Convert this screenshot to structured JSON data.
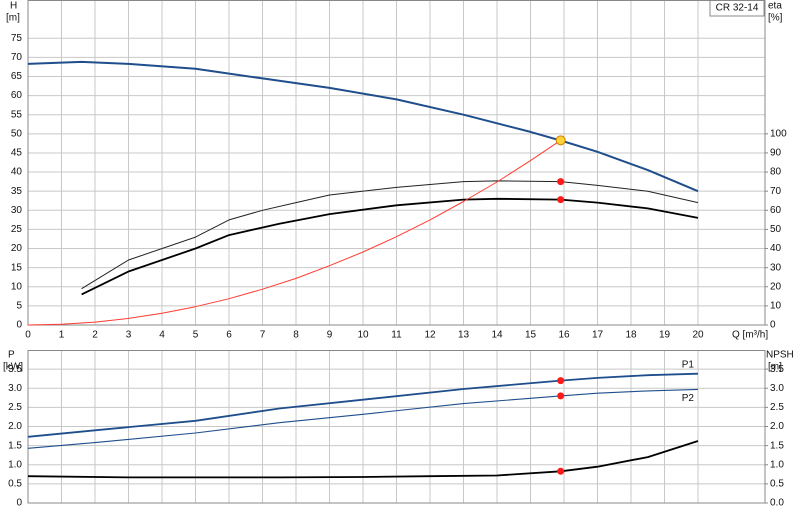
{
  "chart_data": [
    {
      "type": "line",
      "model": "CR 32-14",
      "y_label": "H",
      "y_unit": "[m]",
      "y2_label": "eta",
      "y2_unit": "[%]",
      "x_label": "Q [m³/h]",
      "xlim": [
        0,
        22
      ],
      "xticks": [
        0,
        1,
        2,
        3,
        4,
        5,
        6,
        7,
        8,
        9,
        10,
        11,
        12,
        13,
        14,
        15,
        16,
        17,
        18,
        19,
        20
      ],
      "ylim": [
        0,
        85
      ],
      "yticks": [
        0,
        5,
        10,
        15,
        20,
        25,
        30,
        35,
        40,
        45,
        50,
        55,
        60,
        65,
        70,
        75
      ],
      "y2lim": [
        0,
        170
      ],
      "y2ticks": [
        0,
        10,
        20,
        30,
        40,
        50,
        60,
        70,
        80,
        90,
        100
      ],
      "grid": true,
      "series": [
        {
          "color": "#1f4e8c",
          "line_width": 2,
          "x": [
            0,
            1.6,
            3,
            5,
            7,
            9,
            11,
            13,
            15,
            16,
            17,
            18.5,
            20
          ],
          "values": [
            68.3,
            68.8,
            68.3,
            67,
            64.5,
            62,
            59,
            55,
            50.5,
            48,
            45.3,
            40.5,
            35
          ]
        },
        {
          "color": "#222222",
          "line_width": 1,
          "axis": "y2",
          "x": [
            1.6,
            3,
            5,
            6,
            7,
            8,
            9,
            11,
            13,
            14,
            15.9,
            17,
            18.5,
            20
          ],
          "values": [
            19,
            34,
            46,
            55,
            60,
            64,
            68,
            72,
            75,
            75.4,
            75,
            73,
            70,
            64
          ]
        },
        {
          "color": "#000000",
          "line_width": 1.8,
          "axis": "y2",
          "x": [
            1.6,
            3,
            5,
            6,
            7.5,
            9,
            11,
            13,
            14,
            15.9,
            17,
            18.5,
            20
          ],
          "values": [
            16,
            28,
            40,
            47,
            53,
            58,
            62.6,
            65.6,
            66,
            65.6,
            64,
            61,
            56
          ]
        },
        {
          "color": "#ff3b30",
          "line_width": 1,
          "x": [
            0,
            1,
            2,
            3,
            4,
            5,
            6,
            7,
            8,
            9,
            10,
            11,
            12,
            13,
            14,
            15,
            15.9
          ],
          "values": [
            0,
            0.19,
            0.76,
            1.72,
            3.06,
            4.78,
            6.88,
            9.36,
            12.2,
            15.5,
            19.1,
            23.1,
            27.5,
            32.3,
            37.4,
            43,
            48.3
          ]
        }
      ],
      "points": [
        {
          "x": 15.9,
          "value": 48.3,
          "color": "#ffd23a"
        },
        {
          "x": 15.9,
          "value": 75,
          "axis": "y2",
          "color": "#ff1a1a"
        },
        {
          "x": 15.9,
          "value": 65.6,
          "axis": "y2",
          "color": "#ff1a1a"
        }
      ]
    },
    {
      "type": "line",
      "y_label": "P",
      "y_unit": "[kW]",
      "y2_label": "NPSH",
      "y2_unit": "[m]",
      "xlim": [
        0,
        22
      ],
      "xticks": [
        0,
        1,
        2,
        3,
        4,
        5,
        6,
        7,
        8,
        9,
        10,
        11,
        12,
        13,
        14,
        15,
        16,
        17,
        18,
        19,
        20
      ],
      "show_xtick_labels": false,
      "ylim": [
        0,
        4
      ],
      "yticks": [
        0,
        0.5,
        {
          "value": 1,
          "label": "1.0"
        },
        1.5,
        {
          "value": 2,
          "label": "2.0"
        },
        2.5,
        {
          "value": 3,
          "label": "3.0"
        },
        3.5
      ],
      "y2lim": [
        0,
        4
      ],
      "y2ticks": [
        {
          "value": 0,
          "label": "0.0"
        },
        0.5,
        {
          "value": 1,
          "label": "1.0"
        },
        1.5,
        {
          "value": 2,
          "label": "2.0"
        },
        2.5,
        {
          "value": 3,
          "label": "3.0"
        },
        3.5
      ],
      "grid": true,
      "series": [
        {
          "name": "P1",
          "color": "#1f4e8c",
          "line_width": 1.8,
          "x": [
            0,
            2,
            5,
            7.5,
            10,
            13,
            15.9,
            17,
            18.5,
            20
          ],
          "values": [
            1.73,
            1.9,
            2.15,
            2.47,
            2.7,
            2.98,
            3.2,
            3.27,
            3.34,
            3.38
          ]
        },
        {
          "name": "P2",
          "color": "#1f4e8c",
          "line_width": 1.1,
          "x": [
            0,
            2,
            5,
            7.5,
            10,
            13,
            15.9,
            17,
            18.5,
            20
          ],
          "values": [
            1.43,
            1.58,
            1.83,
            2.1,
            2.32,
            2.6,
            2.8,
            2.87,
            2.93,
            2.97
          ]
        },
        {
          "color": "#000000",
          "line_width": 1.8,
          "axis": "y2",
          "x": [
            0,
            3,
            7.5,
            10,
            12,
            14,
            15.9,
            17,
            18.5,
            20
          ],
          "values": [
            0.7,
            0.67,
            0.67,
            0.68,
            0.7,
            0.72,
            0.83,
            0.95,
            1.2,
            1.62
          ]
        }
      ],
      "points": [
        {
          "x": 15.9,
          "value": 3.2,
          "color": "#ff1a1a"
        },
        {
          "x": 15.9,
          "value": 2.8,
          "color": "#ff1a1a"
        },
        {
          "x": 15.9,
          "value": 0.83,
          "axis": "y2",
          "color": "#ff1a1a"
        }
      ]
    }
  ]
}
